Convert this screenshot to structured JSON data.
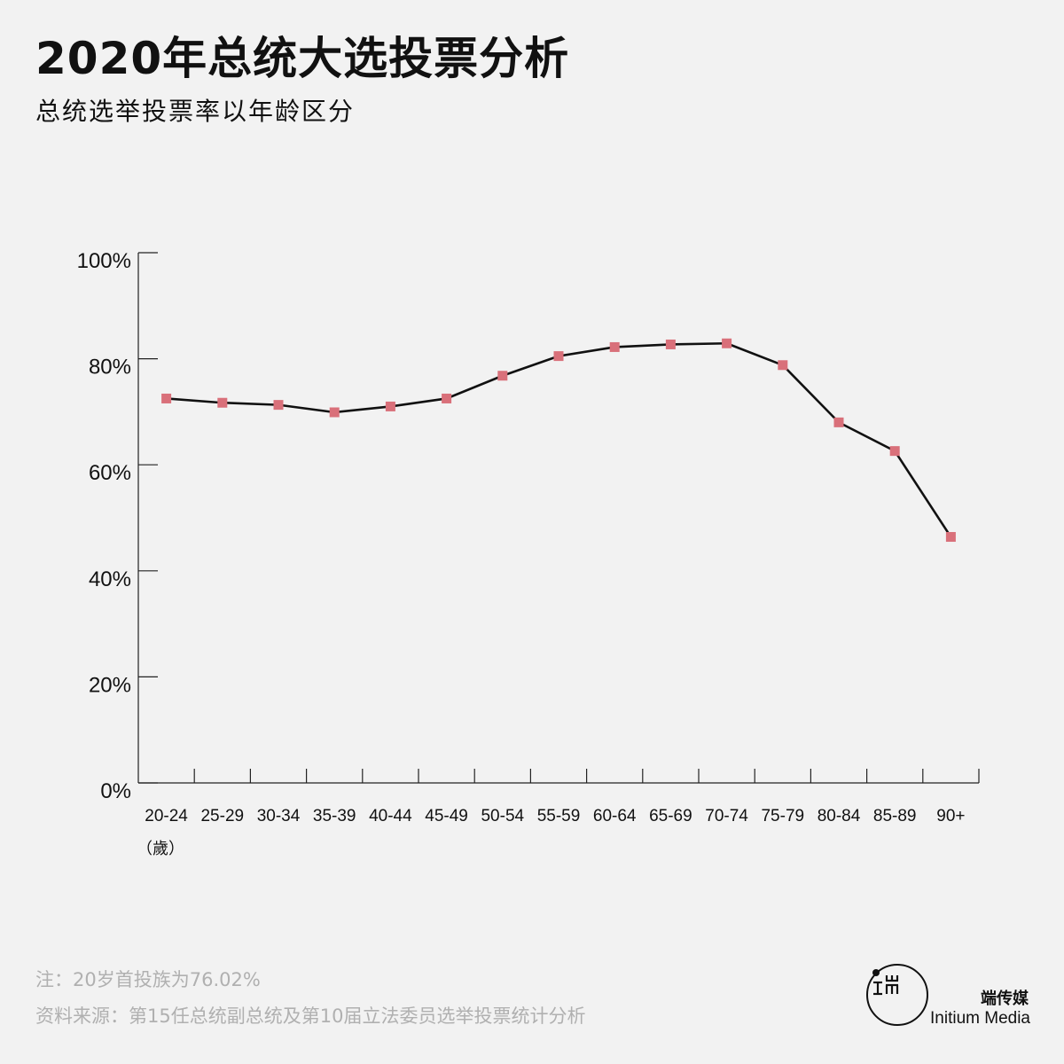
{
  "header": {
    "title": "2020年总统大选投票分析",
    "subtitle": "总统选举投票率以年龄区分"
  },
  "chart_data": {
    "type": "line",
    "title": "2020年总统大选投票分析",
    "subtitle": "总统选举投票率以年龄区分",
    "xlabel": "（歲）",
    "ylabel": "",
    "categories": [
      "20-24",
      "25-29",
      "30-34",
      "35-39",
      "40-44",
      "45-49",
      "50-54",
      "55-59",
      "60-64",
      "65-69",
      "70-74",
      "75-79",
      "80-84",
      "85-89",
      "90+"
    ],
    "series": [
      {
        "values": [
          72.5,
          71.7,
          71.3,
          69.9,
          71.0,
          72.5,
          76.8,
          80.5,
          82.2,
          82.7,
          82.9,
          78.8,
          68.0,
          62.6,
          46.4
        ]
      }
    ],
    "ylim": [
      0,
      100
    ],
    "yticks": [
      0,
      20,
      40,
      60,
      80,
      100
    ],
    "ytick_labels": [
      "0%",
      "20%",
      "40%",
      "60%",
      "80%",
      "100%"
    ],
    "grid": false,
    "colors": {
      "line": "#111111",
      "marker": "#d9707a"
    }
  },
  "footer": {
    "note": "注：20岁首投族为76.02%",
    "source": "资料来源：第15任总统副总统及第10届立法委员选举投票统计分析",
    "brand_cn": "端传媒",
    "brand_en": "Initium Media"
  }
}
